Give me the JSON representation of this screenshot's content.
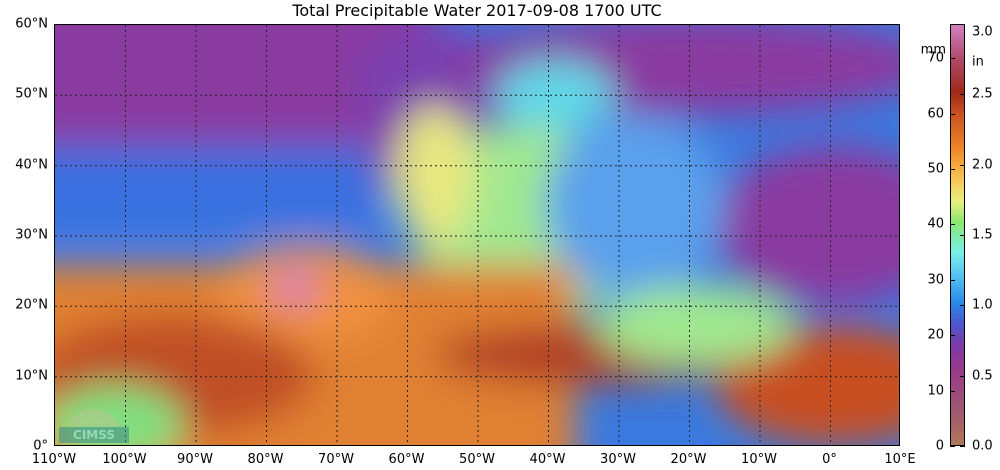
{
  "title": "Total Precipitable Water  2017-09-08 1700 UTC",
  "lat_labels": [
    "60°N",
    "50°N",
    "40°N",
    "30°N",
    "20°N",
    "10°N",
    "0°"
  ],
  "lon_labels": [
    "110°W",
    "100°W",
    "90°W",
    "80°W",
    "70°W",
    "60°W",
    "50°W",
    "40°W",
    "30°W",
    "20°W",
    "10°W",
    "0°",
    "10°E"
  ],
  "map_extent": {
    "lon": [
      -110,
      10
    ],
    "lat": [
      0,
      60
    ]
  },
  "colorbar": {
    "mm_ticks": [
      "0",
      "10",
      "20",
      "30",
      "40",
      "50",
      "60",
      "70"
    ],
    "mm_unit": "mm",
    "in_ticks": [
      "0.0",
      "0.5",
      "1.0",
      "1.5",
      "2.0",
      "2.5",
      "3.0"
    ],
    "in_unit": "in",
    "range_mm": [
      0,
      76.2
    ],
    "colors": [
      "#b07a58",
      "#983a8a",
      "#4a58d0",
      "#5ac8f0",
      "#8ae870",
      "#f8c050",
      "#f08a28",
      "#a02818",
      "#d080c0"
    ]
  },
  "logo": "CIMSS"
}
